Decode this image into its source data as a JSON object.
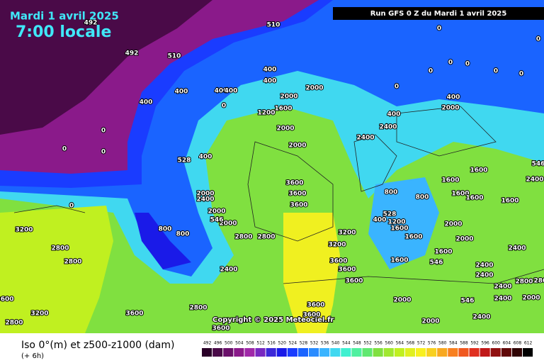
{
  "header": {
    "date": "Mardi 1 avril 2025",
    "time": "7:00 locale",
    "run": "Run GFS 0 Z du Mardi 1 avril 2025"
  },
  "copyright": "Copyright © 2025 Meteociel.fr",
  "legend": {
    "title": "Iso 0°(m) et z500-z1000 (dam)",
    "step": "(+ 6h)",
    "ticks": [
      492,
      496,
      500,
      504,
      508,
      512,
      516,
      520,
      524,
      528,
      532,
      536,
      540,
      544,
      548,
      552,
      556,
      560,
      564,
      568,
      572,
      576,
      580,
      584,
      588,
      592,
      596,
      600,
      604,
      608,
      612
    ],
    "colors": [
      "#2a0028",
      "#4a0a48",
      "#6a106a",
      "#8a1a8a",
      "#a028a8",
      "#7828c0",
      "#3c28d8",
      "#1a1ae8",
      "#1a3cff",
      "#1a64ff",
      "#2a8cff",
      "#3ab4ff",
      "#40d8f0",
      "#40f0d0",
      "#50f0a0",
      "#60e870",
      "#80e040",
      "#a0e830",
      "#c0f020",
      "#e0f020",
      "#f8f020",
      "#f8d020",
      "#f8a820",
      "#f88020",
      "#f05820",
      "#e03020",
      "#c01818",
      "#901010",
      "#600808",
      "#300404",
      "#000000"
    ]
  },
  "map_labels": [
    492,
    510,
    492,
    510,
    0,
    0,
    0,
    0,
    0,
    0,
    0,
    400,
    400,
    400,
    400,
    400,
    400,
    0,
    2000,
    2000,
    1600,
    1200,
    0,
    0,
    0,
    2000,
    528,
    400,
    2000,
    2400,
    2400,
    400,
    400,
    2000,
    0,
    3600,
    3600,
    3600,
    800,
    800,
    1600,
    1600,
    1600,
    1600,
    1600,
    2400,
    546,
    2000,
    2400,
    2000,
    2000,
    546,
    800,
    800,
    0,
    3200,
    2800,
    2800,
    3600,
    3200,
    2800,
    2800,
    2400,
    2800,
    2800,
    3200,
    3600,
    3600,
    3600,
    3200,
    528,
    400,
    1600,
    1200,
    1600,
    1600,
    1600,
    2000,
    2000,
    546,
    2400,
    2400,
    2400,
    2400,
    2800,
    2800,
    2400,
    546,
    2000,
    2000,
    3600,
    3600,
    3600,
    3600,
    2400,
    2000
  ]
}
